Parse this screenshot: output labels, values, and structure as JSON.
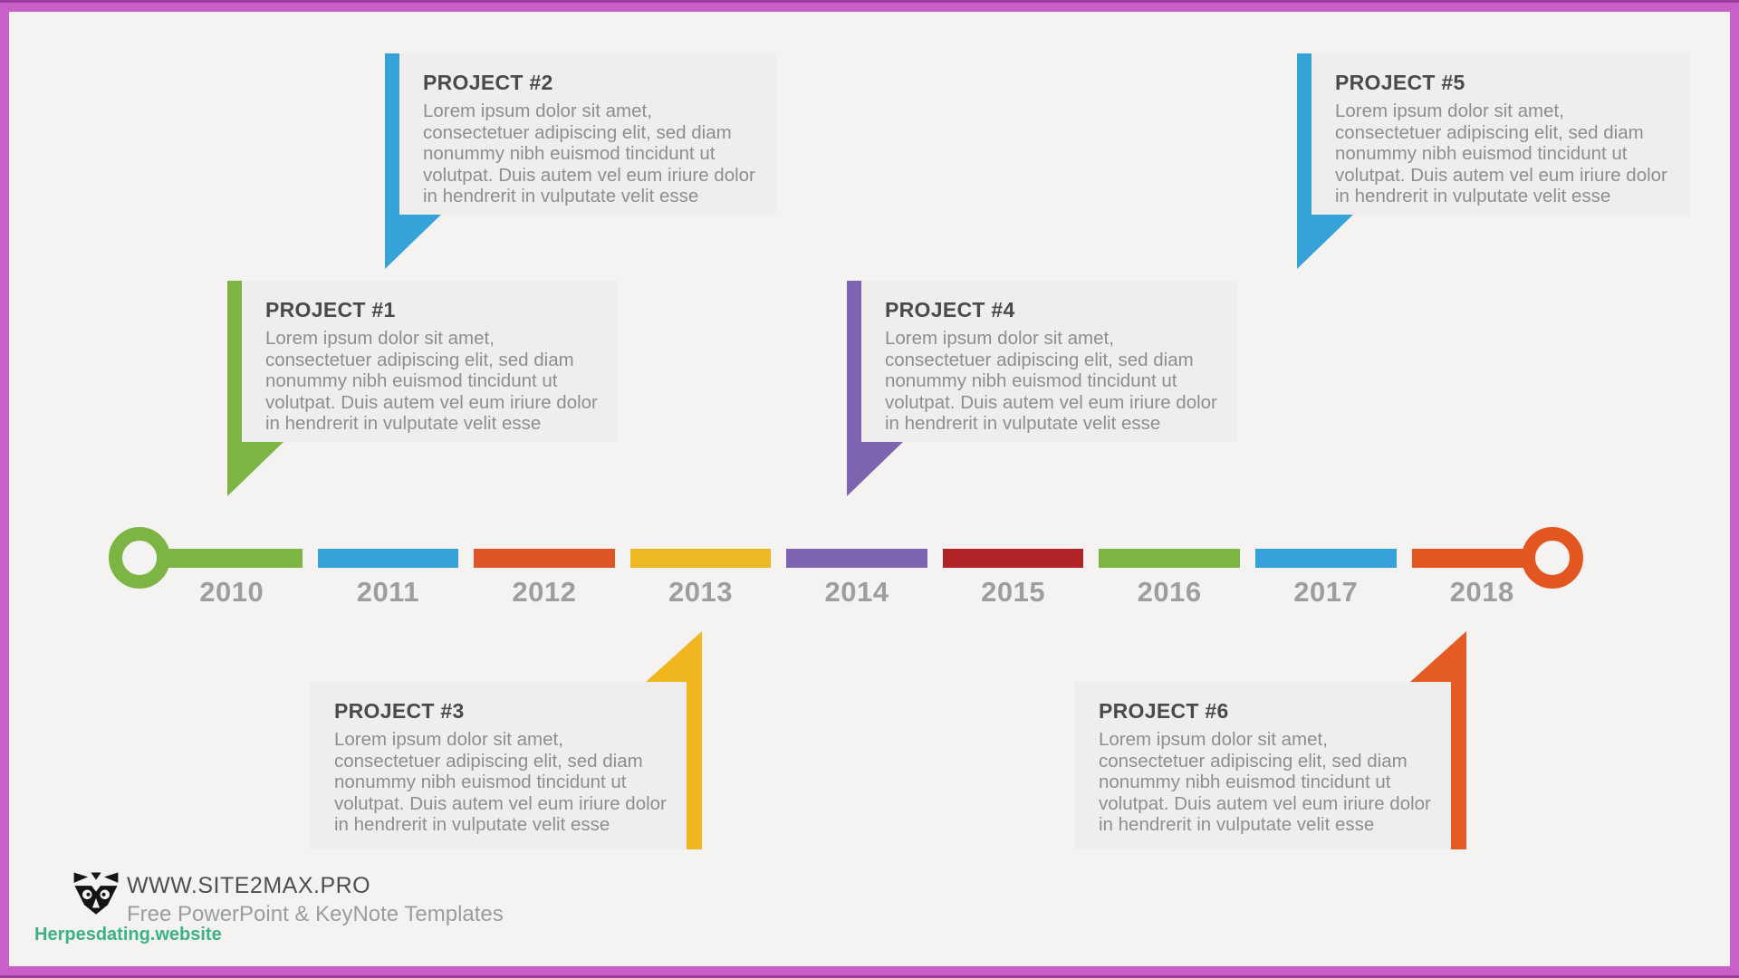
{
  "slide": {
    "background": "#f4f3f2",
    "frame_color": "#c95fc9",
    "frame_edge_color": "#9c3da1",
    "card_background": "#efeeec",
    "title_color": "#4a4a4a",
    "body_color": "#8e8e8e"
  },
  "cards": [
    {
      "title": "PROJECT #1",
      "color": "#7cb544",
      "body_lines": [
        "Lorem ipsum dolor sit amet,",
        "consectetuer adipiscing elit, sed diam",
        "nonummy nibh euismod tincidunt ut",
        "volutpat. Duis autem vel eum iriure dolor",
        "in hendrerit in vulputate velit esse"
      ]
    },
    {
      "title": "PROJECT #2",
      "color": "#35a2d8",
      "body_lines": [
        "Lorem ipsum dolor sit amet,",
        "consectetuer adipiscing elit, sed diam",
        "nonummy nibh euismod tincidunt ut",
        "volutpat. Duis autem vel eum iriure dolor",
        "in hendrerit in vulputate velit esse"
      ]
    },
    {
      "title": "PROJECT #3",
      "color": "#efb620",
      "body_lines": [
        "Lorem ipsum dolor sit amet,",
        "consectetuer adipiscing elit, sed diam",
        "nonummy nibh euismod tincidunt ut",
        "volutpat. Duis autem vel eum iriure dolor",
        "in hendrerit in vulputate velit esse"
      ]
    },
    {
      "title": "PROJECT #4",
      "color": "#7e64ae",
      "body_lines": [
        "Lorem ipsum dolor sit amet,",
        "consectetuer adipiscing elit, sed diam",
        "nonummy nibh euismod tincidunt ut",
        "volutpat. Duis autem vel eum iriure dolor",
        "in hendrerit in vulputate velit esse"
      ]
    },
    {
      "title": "PROJECT #5",
      "color": "#35a2d8",
      "body_lines": [
        "Lorem ipsum dolor sit amet,",
        "consectetuer adipiscing elit, sed diam",
        "nonummy nibh euismod tincidunt ut",
        "volutpat. Duis autem vel eum iriure dolor",
        "in hendrerit in vulputate velit esse"
      ]
    },
    {
      "title": "PROJECT #6",
      "color": "#e45b24",
      "body_lines": [
        "Lorem ipsum dolor sit amet,",
        "consectetuer adipiscing elit, sed diam",
        "nonummy nibh euismod tincidunt ut",
        "volutpat. Duis autem vel eum iriure dolor",
        "in hendrerit in vulputate velit esse"
      ]
    }
  ],
  "timeline": {
    "label_color": "#9e9e9e",
    "start_cap_color": "#7cb544",
    "end_cap_color": "#e4561f",
    "years": [
      {
        "label": "2010",
        "color": "#7cb544"
      },
      {
        "label": "2011",
        "color": "#35a2d8"
      },
      {
        "label": "2012",
        "color": "#dd5526"
      },
      {
        "label": "2013",
        "color": "#eeb824"
      },
      {
        "label": "2014",
        "color": "#7e64ae"
      },
      {
        "label": "2015",
        "color": "#b22328"
      },
      {
        "label": "2016",
        "color": "#7cb544"
      },
      {
        "label": "2017",
        "color": "#35a2d8"
      },
      {
        "label": "2018",
        "color": "#e4561f"
      }
    ]
  },
  "footer": {
    "logo": "raccoon-logo",
    "site": "WWW.SITE2MAX.PRO",
    "tagline": "Free PowerPoint & KeyNote Templates",
    "watermark": "Herpesdating.website",
    "watermark_color": "#3bb184"
  }
}
